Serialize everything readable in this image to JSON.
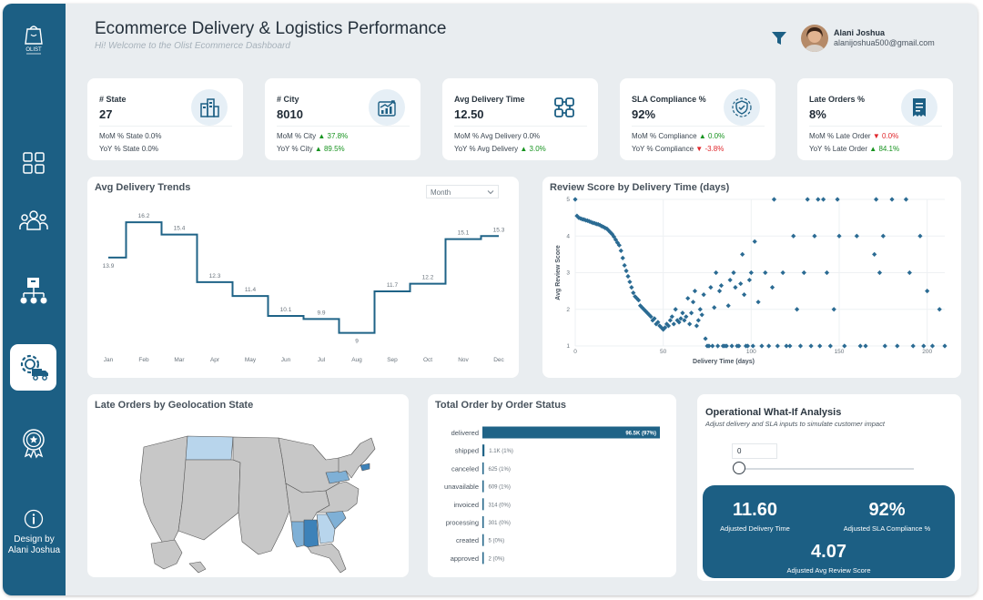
{
  "header": {
    "title": "Ecommerce Delivery & Logistics Performance",
    "subtitle": "Hi!  Welcome to the Olist Ecommerce Dashboard",
    "user_name": "Alani Joshua",
    "user_email": "alanijoshua500@gmail.com"
  },
  "sidebar": {
    "logo_text": "OLIST",
    "items": [
      {
        "icon": "grid-icon"
      },
      {
        "icon": "people-icon"
      },
      {
        "icon": "network-icon"
      },
      {
        "icon": "gear-truck-icon",
        "active": true
      },
      {
        "icon": "award-icon"
      }
    ],
    "credit_line1": "Design by",
    "credit_line2": "Alani Joshua"
  },
  "kpis": [
    {
      "label": "# State",
      "value": "27",
      "icon": "buildings-icon",
      "row1_label": "MoM % State",
      "row1_value": "0.0%",
      "row1_trend": "none",
      "row2_label": "YoY % State",
      "row2_value": "0.0%",
      "row2_trend": "none"
    },
    {
      "label": "# City",
      "value": "8010",
      "icon": "growth-chart-icon",
      "row1_label": "MoM % City",
      "row1_value": "37.8%",
      "row1_trend": "up",
      "row2_label": "YoY % City",
      "row2_value": "89.5%",
      "row2_trend": "up"
    },
    {
      "label": "Avg Delivery Time",
      "value": "12.50",
      "icon": "delivery-route-icon",
      "row1_label": "MoM % Avg Delivery",
      "row1_value": "0.0%",
      "row1_trend": "none",
      "row2_label": "YoY % Avg Delivery",
      "row2_value": "3.0%",
      "row2_trend": "up"
    },
    {
      "label": "SLA Compliance %",
      "value": "92%",
      "icon": "shield-check-icon",
      "row1_label": "MoM % Compliance",
      "row1_value": "0.0%",
      "row1_trend": "up",
      "row2_label": "YoY % Compliance",
      "row2_value": "-3.8%",
      "row2_trend": "down"
    },
    {
      "label": "Late Orders %",
      "value": "8%",
      "icon": "receipt-icon",
      "row1_label": "MoM % Late Order",
      "row1_value": "0.0%",
      "row1_trend": "down",
      "row2_label": "YoY % Late Order",
      "row2_value": "84.1%",
      "row2_trend": "up"
    }
  ],
  "trend_card": {
    "title": "Avg Delivery Trends",
    "dropdown_value": "Month"
  },
  "scatter_card": {
    "title": "Review Score by Delivery Time (days)"
  },
  "map_card": {
    "title": "Late Orders by Geolocation State"
  },
  "status_card": {
    "title": "Total Order by Order Status"
  },
  "whatif": {
    "title": "Operational What-If Analysis",
    "subtitle": "Adjust delivery and SLA inputs to simulate customer impact",
    "param_value": "0",
    "slider_level": 0,
    "delivery_value": "11.60",
    "delivery_label": "Adjusted Delivery Time",
    "sla_value": "92%",
    "sla_label": "Adjusted SLA Compliance %",
    "review_value": "4.07",
    "review_label": "Adjusted Avg Review Score"
  },
  "colors": {
    "primary": "#1c5f84",
    "line": "#1f6387",
    "point": "#2b6b93",
    "bar": "#1f6387",
    "up": "#17931f",
    "down": "#e0262b",
    "map_base": "#c7c7c7",
    "map_light": "#b8d5ec",
    "map_mid": "#7fb0d6",
    "map_dark": "#3d82b9"
  },
  "chart_data": [
    {
      "type": "line",
      "title": "Avg Delivery Trends",
      "step": true,
      "categories": [
        "Jan",
        "Feb",
        "Mar",
        "Apr",
        "May",
        "Jun",
        "Jul",
        "Aug",
        "Sep",
        "Oct",
        "Nov",
        "Dec"
      ],
      "values": [
        13.9,
        16.2,
        15.4,
        12.3,
        11.4,
        10.1,
        9.9,
        9.0,
        11.7,
        12.2,
        15.1,
        15.3
      ],
      "ylim": [
        8.5,
        16.8
      ]
    },
    {
      "type": "scatter",
      "title": "Review Score by Delivery Time (days)",
      "xlabel": "Delivery Time (days)",
      "ylabel": "Avg Review Score",
      "xlim": [
        0,
        210
      ],
      "ylim": [
        1,
        5
      ],
      "xticks": [
        0,
        50,
        100,
        150,
        200
      ],
      "yticks": [
        1,
        2,
        3,
        4,
        5
      ],
      "grid": true,
      "points": [
        [
          0,
          5
        ],
        [
          1,
          4.55
        ],
        [
          2,
          4.5
        ],
        [
          3,
          4.48
        ],
        [
          4,
          4.46
        ],
        [
          5,
          4.45
        ],
        [
          6,
          4.43
        ],
        [
          7,
          4.42
        ],
        [
          8,
          4.4
        ],
        [
          9,
          4.38
        ],
        [
          10,
          4.36
        ],
        [
          11,
          4.35
        ],
        [
          12,
          4.33
        ],
        [
          13,
          4.32
        ],
        [
          14,
          4.3
        ],
        [
          15,
          4.27
        ],
        [
          16,
          4.25
        ],
        [
          17,
          4.22
        ],
        [
          18,
          4.2
        ],
        [
          19,
          4.15
        ],
        [
          20,
          4.1
        ],
        [
          21,
          4.05
        ],
        [
          22,
          3.98
        ],
        [
          23,
          3.9
        ],
        [
          24,
          3.82
        ],
        [
          25,
          3.75
        ],
        [
          26,
          3.6
        ],
        [
          27,
          3.4
        ],
        [
          28,
          3.2
        ],
        [
          29,
          3.05
        ],
        [
          30,
          2.9
        ],
        [
          31,
          2.75
        ],
        [
          32,
          2.6
        ],
        [
          33,
          2.45
        ],
        [
          34,
          2.35
        ],
        [
          35,
          2.3
        ],
        [
          36,
          2.25
        ],
        [
          37,
          2.1
        ],
        [
          38,
          2.05
        ],
        [
          39,
          2.0
        ],
        [
          40,
          1.95
        ],
        [
          41,
          1.9
        ],
        [
          42,
          1.85
        ],
        [
          43,
          1.8
        ],
        [
          44,
          1.7
        ],
        [
          45,
          1.75
        ],
        [
          46,
          1.6
        ],
        [
          47,
          1.65
        ],
        [
          48,
          1.55
        ],
        [
          49,
          1.5
        ],
        [
          50,
          1.45
        ],
        [
          51,
          1.5
        ],
        [
          52,
          1.6
        ],
        [
          53,
          1.55
        ],
        [
          54,
          1.7
        ],
        [
          55,
          1.8
        ],
        [
          56,
          1.6
        ],
        [
          57,
          2.0
        ],
        [
          58,
          1.7
        ],
        [
          59,
          1.65
        ],
        [
          60,
          1.75
        ],
        [
          61,
          1.9
        ],
        [
          62,
          1.7
        ],
        [
          63,
          1.8
        ],
        [
          64,
          2.3
        ],
        [
          65,
          1.6
        ],
        [
          66,
          1.9
        ],
        [
          67,
          2.2
        ],
        [
          68,
          2.5
        ],
        [
          69,
          1.55
        ],
        [
          70,
          1.7
        ],
        [
          71,
          2.0
        ],
        [
          72,
          1.85
        ],
        [
          73,
          2.4
        ],
        [
          74,
          1.2
        ],
        [
          75,
          1.0
        ],
        [
          76,
          1.0
        ],
        [
          77,
          2.6
        ],
        [
          78,
          1.0
        ],
        [
          79,
          2.05
        ],
        [
          80,
          3.0
        ],
        [
          81,
          1.0
        ],
        [
          82,
          2.5
        ],
        [
          83,
          2.65
        ],
        [
          84,
          1.0
        ],
        [
          85,
          1.0
        ],
        [
          86,
          1.0
        ],
        [
          87,
          2.1
        ],
        [
          88,
          2.8
        ],
        [
          89,
          1.0
        ],
        [
          90,
          3.0
        ],
        [
          91,
          2.6
        ],
        [
          92,
          1.0
        ],
        [
          93,
          1.0
        ],
        [
          94,
          2.7
        ],
        [
          95,
          3.5
        ],
        [
          96,
          2.4
        ],
        [
          97,
          1.0
        ],
        [
          98,
          1.0
        ],
        [
          99,
          2.8
        ],
        [
          100,
          3.0
        ],
        [
          101,
          1.0
        ],
        [
          102,
          3.85
        ],
        [
          104,
          2.2
        ],
        [
          106,
          1.0
        ],
        [
          108,
          3.0
        ],
        [
          110,
          1.0
        ],
        [
          112,
          2.6
        ],
        [
          113,
          5.0
        ],
        [
          115,
          1.0
        ],
        [
          118,
          3.0
        ],
        [
          120,
          1.0
        ],
        [
          122,
          1.0
        ],
        [
          124,
          4.0
        ],
        [
          126,
          2.0
        ],
        [
          128,
          1.0
        ],
        [
          130,
          3.0
        ],
        [
          132,
          5.0
        ],
        [
          134,
          1.0
        ],
        [
          136,
          4.0
        ],
        [
          138,
          5.0
        ],
        [
          139,
          1.0
        ],
        [
          141,
          5.0
        ],
        [
          143,
          3.0
        ],
        [
          145,
          1.0
        ],
        [
          147,
          2.0
        ],
        [
          149,
          5.0
        ],
        [
          150,
          4.0
        ],
        [
          153,
          1.0
        ],
        [
          160,
          4.0
        ],
        [
          162,
          1.0
        ],
        [
          165,
          1.0
        ],
        [
          170,
          3.5
        ],
        [
          171,
          5.0
        ],
        [
          173,
          3.0
        ],
        [
          175,
          4.0
        ],
        [
          176,
          1.0
        ],
        [
          180,
          5.0
        ],
        [
          183,
          1.0
        ],
        [
          188,
          5.0
        ],
        [
          190,
          3.0
        ],
        [
          192,
          1.0
        ],
        [
          196,
          4.0
        ],
        [
          198,
          1.0
        ],
        [
          200,
          2.5
        ],
        [
          203,
          1.0
        ],
        [
          207,
          2.0
        ],
        [
          210,
          1.0
        ]
      ]
    },
    {
      "type": "bar",
      "title": "Total Order by Order Status",
      "orientation": "horizontal",
      "categories": [
        "delivered",
        "shipped",
        "canceled",
        "unavailable",
        "invoiced",
        "processing",
        "created",
        "approved"
      ],
      "values": [
        96478,
        1107,
        625,
        609,
        314,
        301,
        5,
        2
      ],
      "data_labels": [
        "96.5K (97%)",
        "1.1K (1%)",
        "625 (1%)",
        "609 (1%)",
        "314 (0%)",
        "301 (0%)",
        "5 (0%)",
        "2 (0%)"
      ]
    }
  ],
  "map_data": {
    "highlighted": [
      {
        "region": "montana",
        "level": "light"
      },
      {
        "region": "pennsylvania",
        "level": "mid"
      },
      {
        "region": "massachusetts",
        "level": "dark"
      },
      {
        "region": "mississippi",
        "level": "mid"
      },
      {
        "region": "alabama",
        "level": "dark"
      },
      {
        "region": "georgia",
        "level": "light"
      },
      {
        "region": "south-carolina",
        "level": "mid"
      }
    ]
  }
}
